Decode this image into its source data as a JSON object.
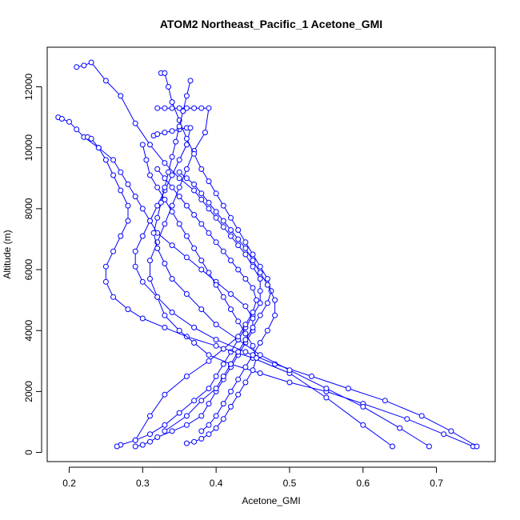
{
  "chart_data": {
    "type": "line",
    "title": "ATOM2 Northeast_Pacific_1 Acetone_GMI",
    "xlabel": "Acetone_GMI",
    "ylabel": "Altitude (m)",
    "xlim": [
      0.17,
      0.78
    ],
    "ylim": [
      -300,
      13300
    ],
    "x_ticks": [
      0.2,
      0.3,
      0.4,
      0.5,
      0.6,
      0.7
    ],
    "x_tick_labels": [
      "0.2",
      "0.3",
      "0.4",
      "0.5",
      "0.6",
      "0.7"
    ],
    "y_ticks": [
      0,
      2000,
      4000,
      6000,
      8000,
      10000,
      12000
    ],
    "y_tick_labels": [
      "0",
      "2000",
      "4000",
      "6000",
      "8000",
      "10000",
      "12000"
    ],
    "grid": false,
    "marker": "open-circle",
    "line_color": "#0000ff",
    "series": [
      {
        "x": [
          0.21,
          0.22,
          0.23,
          0.25,
          0.27,
          0.29,
          0.31,
          0.33,
          0.35,
          0.37,
          0.38,
          0.39,
          0.4,
          0.41,
          0.42,
          0.43,
          0.44,
          0.45,
          0.46,
          0.46,
          0.46,
          0.45,
          0.44,
          0.43,
          0.42,
          0.41,
          0.4,
          0.39,
          0.37,
          0.35,
          0.33,
          0.31,
          0.29,
          0.27,
          0.265
        ],
        "y": [
          12650,
          12700,
          12800,
          12200,
          11700,
          10800,
          10100,
          9500,
          9000,
          8600,
          8300,
          8000,
          7700,
          7400,
          7100,
          6800,
          6500,
          6100,
          5700,
          5300,
          4900,
          4500,
          4100,
          3700,
          3300,
          2900,
          2500,
          2100,
          1700,
          1300,
          900,
          600,
          400,
          250,
          200
        ]
      },
      {
        "x": [
          0.185,
          0.19,
          0.2,
          0.21,
          0.22,
          0.24,
          0.26,
          0.27,
          0.28,
          0.29,
          0.3,
          0.31,
          0.32,
          0.34,
          0.36,
          0.38,
          0.4,
          0.42,
          0.44,
          0.45,
          0.45,
          0.44,
          0.43,
          0.42,
          0.41,
          0.4,
          0.39,
          0.38,
          0.36,
          0.34,
          0.32,
          0.31,
          0.3,
          0.29
        ],
        "y": [
          11000,
          10950,
          10850,
          10600,
          10350,
          10000,
          9600,
          9200,
          8800,
          8400,
          8000,
          7600,
          7200,
          6800,
          6400,
          6000,
          5600,
          5200,
          4800,
          4400,
          4000,
          3600,
          3200,
          2800,
          2400,
          2000,
          1600,
          1200,
          900,
          700,
          500,
          350,
          250,
          200
        ]
      },
      {
        "x": [
          0.225,
          0.23,
          0.24,
          0.25,
          0.26,
          0.27,
          0.28,
          0.28,
          0.27,
          0.26,
          0.25,
          0.25,
          0.26,
          0.28,
          0.3,
          0.33,
          0.36,
          0.4,
          0.45,
          0.5,
          0.55,
          0.6,
          0.64
        ],
        "y": [
          10350,
          10300,
          10000,
          9600,
          9100,
          8600,
          8100,
          7600,
          7100,
          6600,
          6100,
          5600,
          5100,
          4700,
          4400,
          4100,
          3800,
          3500,
          3100,
          2600,
          1800,
          900,
          200
        ]
      },
      {
        "x": [
          0.32,
          0.33,
          0.34,
          0.35,
          0.36,
          0.37,
          0.38,
          0.39,
          0.385,
          0.37,
          0.36,
          0.35,
          0.34,
          0.33,
          0.32,
          0.31,
          0.31,
          0.32,
          0.33,
          0.35,
          0.37,
          0.39,
          0.42,
          0.46,
          0.5,
          0.55,
          0.6,
          0.66,
          0.71,
          0.75
        ],
        "y": [
          11300,
          11300,
          11300,
          11300,
          11300,
          11300,
          11300,
          11300,
          10500,
          9900,
          9300,
          8700,
          8100,
          7500,
          6900,
          6300,
          5700,
          5100,
          4500,
          4000,
          3600,
          3200,
          2900,
          2600,
          2300,
          2000,
          1600,
          1100,
          600,
          200
        ]
      },
      {
        "x": [
          0.315,
          0.32,
          0.33,
          0.34,
          0.35,
          0.36,
          0.365,
          0.36,
          0.35,
          0.34,
          0.33,
          0.32,
          0.31,
          0.3,
          0.29,
          0.29,
          0.3,
          0.32,
          0.34,
          0.37,
          0.4,
          0.44,
          0.48,
          0.53,
          0.58,
          0.63,
          0.68,
          0.72,
          0.755
        ],
        "y": [
          10400,
          10450,
          10500,
          10550,
          10600,
          10650,
          10650,
          10100,
          9600,
          9100,
          8600,
          8100,
          7600,
          7100,
          6600,
          6100,
          5600,
          5100,
          4600,
          4100,
          3700,
          3300,
          2900,
          2500,
          2100,
          1700,
          1200,
          700,
          200
        ]
      },
      {
        "x": [
          0.325,
          0.33,
          0.335,
          0.34,
          0.35,
          0.36,
          0.37,
          0.38,
          0.39,
          0.4,
          0.41,
          0.42,
          0.43,
          0.44,
          0.45,
          0.46,
          0.47,
          0.475,
          0.47,
          0.46,
          0.45,
          0.44,
          0.43,
          0.42,
          0.41,
          0.4,
          0.38,
          0.36,
          0.33
        ],
        "y": [
          12450,
          12450,
          12000,
          11500,
          10900,
          10300,
          9800,
          9300,
          8900,
          8500,
          8100,
          7700,
          7300,
          6900,
          6500,
          6100,
          5700,
          5300,
          4900,
          4500,
          4100,
          3700,
          3300,
          2900,
          2500,
          2100,
          1700,
          1200,
          700
        ]
      },
      {
        "x": [
          0.365,
          0.36,
          0.355,
          0.35,
          0.345,
          0.34,
          0.335,
          0.33,
          0.325,
          0.32,
          0.315,
          0.32,
          0.33,
          0.34,
          0.36,
          0.38,
          0.4,
          0.43,
          0.46,
          0.5,
          0.55,
          0.6,
          0.65,
          0.69
        ],
        "y": [
          12200,
          11700,
          11200,
          10700,
          10200,
          9700,
          9200,
          8700,
          8200,
          7700,
          7200,
          6700,
          6200,
          5700,
          5200,
          4700,
          4200,
          3700,
          3200,
          2700,
          2100,
          1500,
          800,
          200
        ]
      },
      {
        "x": [
          0.3,
          0.305,
          0.31,
          0.32,
          0.33,
          0.34,
          0.35,
          0.36,
          0.37,
          0.38,
          0.39,
          0.4,
          0.41,
          0.42,
          0.43,
          0.44,
          0.45,
          0.455,
          0.45,
          0.44,
          0.43,
          0.42,
          0.41,
          0.4,
          0.39,
          0.38,
          0.37,
          0.36
        ],
        "y": [
          10100,
          9600,
          9100,
          8700,
          8300,
          7900,
          7500,
          7100,
          6700,
          6300,
          5900,
          5500,
          5100,
          4700,
          4300,
          3900,
          3500,
          3100,
          2700,
          2300,
          1900,
          1500,
          1100,
          800,
          600,
          450,
          350,
          300
        ]
      },
      {
        "x": [
          0.32,
          0.33,
          0.34,
          0.35,
          0.36,
          0.37,
          0.38,
          0.39,
          0.4,
          0.41,
          0.42,
          0.43,
          0.44,
          0.45,
          0.455,
          0.45,
          0.44,
          0.43,
          0.41,
          0.39,
          0.36,
          0.33,
          0.31,
          0.29
        ],
        "y": [
          9300,
          9000,
          8700,
          8400,
          8100,
          7800,
          7500,
          7200,
          6900,
          6600,
          6300,
          6000,
          5700,
          5400,
          5000,
          4600,
          4200,
          3800,
          3400,
          3000,
          2500,
          1900,
          1200,
          400
        ]
      },
      {
        "x": [
          0.35,
          0.36,
          0.37,
          0.38,
          0.39,
          0.4,
          0.41,
          0.42,
          0.43,
          0.44,
          0.45,
          0.46,
          0.47,
          0.48,
          0.48,
          0.47,
          0.46,
          0.45,
          0.44,
          0.43,
          0.42,
          0.41,
          0.4,
          0.39,
          0.38
        ],
        "y": [
          9200,
          9000,
          8800,
          8500,
          8200,
          7900,
          7600,
          7300,
          7000,
          6700,
          6300,
          5900,
          5500,
          5000,
          4500,
          4000,
          3600,
          3200,
          2800,
          2400,
          2000,
          1600,
          1200,
          900,
          700
        ]
      }
    ]
  }
}
